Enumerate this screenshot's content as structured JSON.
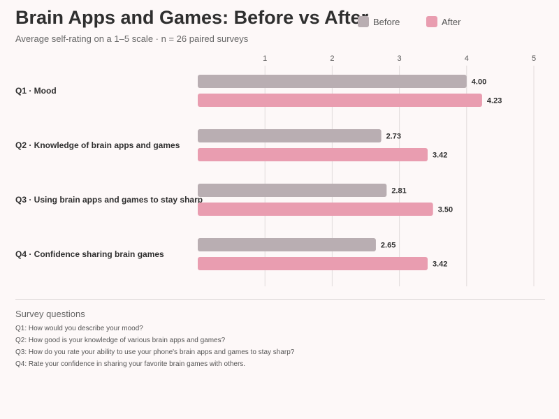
{
  "colors": {
    "before": "#b9aeb2",
    "after": "#e99db0",
    "grid": "#e2dcdc",
    "text": "#2f2f2f"
  },
  "chart_data": {
    "type": "bar",
    "orientation": "horizontal",
    "title": "Brain Apps and Games: Before vs After",
    "subtitle": "Average self-rating on a 1–5 scale · n = 26 paired surveys",
    "categories": [
      "Q1 · Mood",
      "Q2 · Knowledge of brain apps and games",
      "Q3 · Using brain apps and games to stay sharp",
      "Q4 · Confidence sharing brain games"
    ],
    "series": [
      {
        "name": "Before",
        "values": [
          4.0,
          2.73,
          2.81,
          2.65
        ],
        "labels": [
          "4.00",
          "2.73",
          "2.81",
          "2.65"
        ]
      },
      {
        "name": "After",
        "values": [
          4.23,
          3.42,
          3.5,
          3.42
        ],
        "labels": [
          "4.23",
          "3.42",
          "3.50",
          "3.42"
        ]
      }
    ],
    "xlim": [
      0,
      5
    ],
    "xticks": [
      1,
      2,
      3,
      4,
      5
    ],
    "xtick_labels": [
      "1",
      "2",
      "3",
      "4",
      "5"
    ],
    "grid": true,
    "legend_position": "top-right"
  },
  "notes": {
    "title": "Survey questions",
    "items": [
      "Q1: How would you describe your mood?",
      "Q2: How good is your knowledge of various brain apps and games?",
      "Q3: How do you rate your ability to use your phone's brain apps and games to stay sharp?",
      "Q4: Rate your confidence in sharing your favorite brain games with others."
    ]
  }
}
